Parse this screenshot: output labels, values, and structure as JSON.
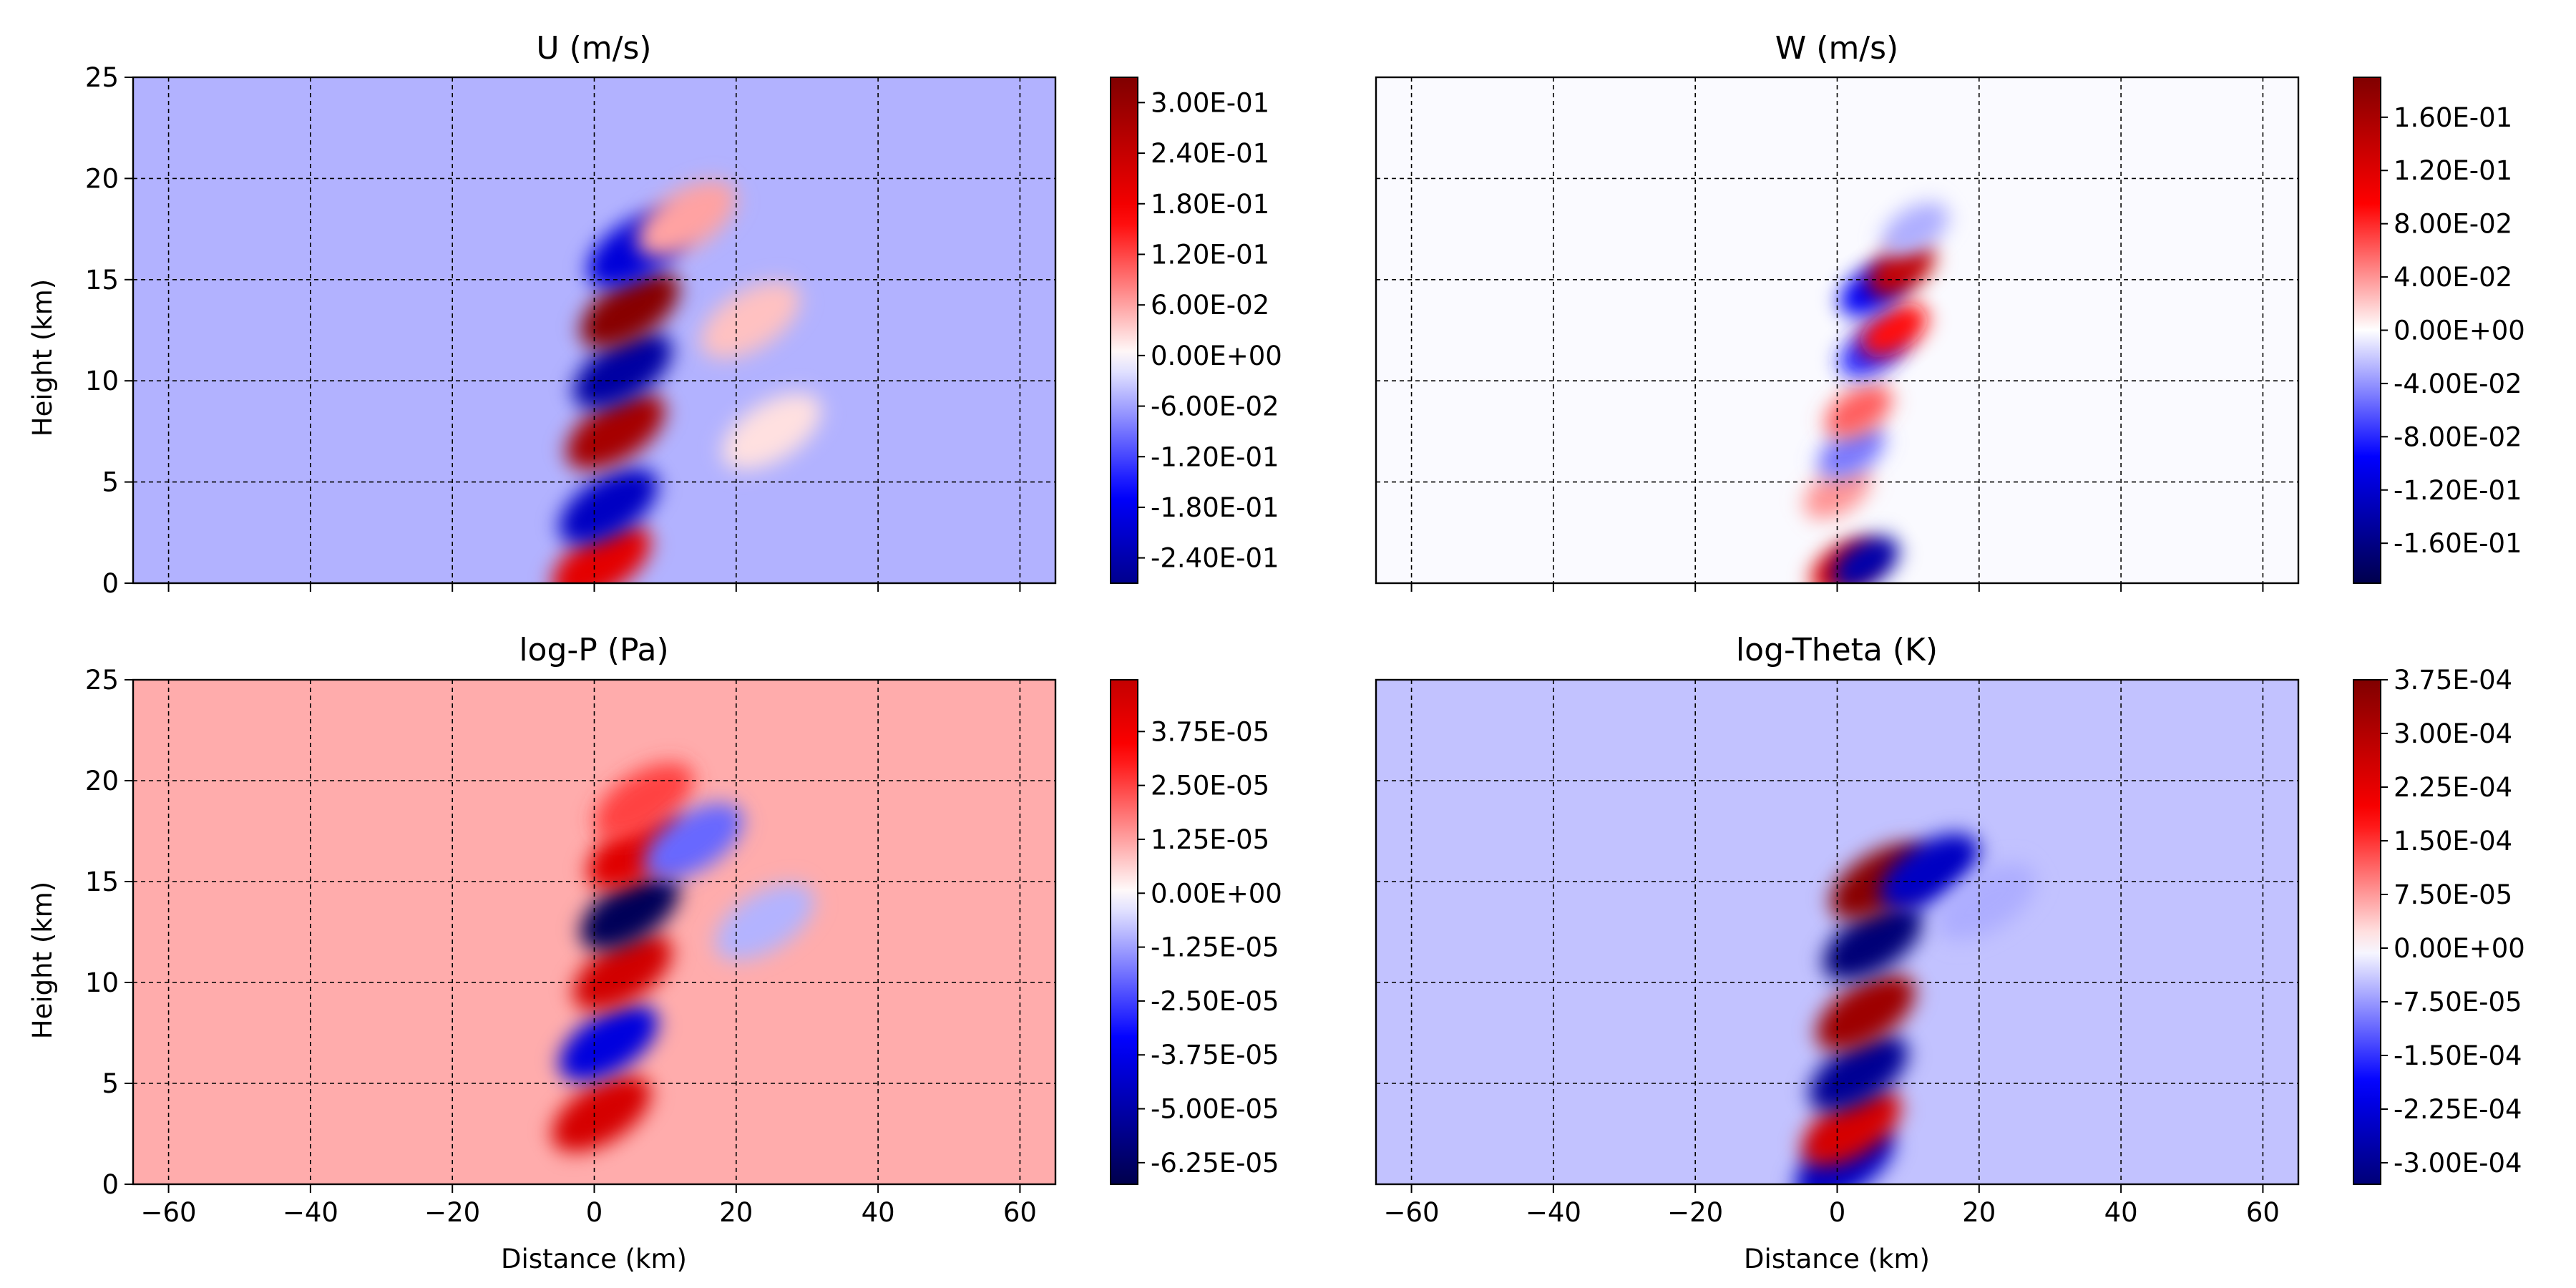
{
  "chart_data": [
    {
      "type": "heatmap",
      "title": "U (m/s)",
      "xlabel": "",
      "ylabel": "Height (km)",
      "xlim": [
        -65,
        65
      ],
      "ylim": [
        0,
        25
      ],
      "x_ticks": [
        -60,
        -40,
        -20,
        0,
        20,
        40,
        60
      ],
      "y_ticks": [
        0,
        5,
        10,
        15,
        20,
        25
      ],
      "x_tick_labels_shown": false,
      "y_tick_labels_shown": true,
      "grid": true,
      "colormap": "seismic",
      "colorbar": {
        "range": [
          -0.27,
          0.33
        ],
        "ticks": [
          -0.24,
          -0.18,
          -0.12,
          -0.06,
          0.0,
          0.06,
          0.12,
          0.18,
          0.24,
          0.3
        ],
        "tick_labels": [
          "-2.40E-01",
          "-1.80E-01",
          "-1.20E-01",
          "-6.00E-02",
          "0.00E+00",
          "6.00E-02",
          "1.20E-01",
          "1.80E-01",
          "2.40E-01",
          "3.00E-01"
        ]
      },
      "background_value": -0.05,
      "features": [
        {
          "x": 1,
          "y": 1.0,
          "value": 0.2
        },
        {
          "x": 2,
          "y": 3.8,
          "value": -0.22
        },
        {
          "x": 3,
          "y": 7.5,
          "value": 0.28
        },
        {
          "x": 4,
          "y": 10.5,
          "value": -0.25
        },
        {
          "x": 5,
          "y": 13.5,
          "value": 0.32
        },
        {
          "x": 6,
          "y": 16.5,
          "value": -0.2
        },
        {
          "x": 13,
          "y": 18.0,
          "value": 0.06
        },
        {
          "x": 22,
          "y": 13.0,
          "value": 0.04
        },
        {
          "x": 25,
          "y": 7.5,
          "value": 0.02
        }
      ]
    },
    {
      "type": "heatmap",
      "title": "W (m/s)",
      "xlabel": "",
      "ylabel": "",
      "xlim": [
        -65,
        65
      ],
      "ylim": [
        0,
        25
      ],
      "x_ticks": [
        -60,
        -40,
        -20,
        0,
        20,
        40,
        60
      ],
      "y_ticks": [
        0,
        5,
        10,
        15,
        20,
        25
      ],
      "x_tick_labels_shown": false,
      "y_tick_labels_shown": false,
      "grid": true,
      "colormap": "seismic",
      "colorbar": {
        "range": [
          -0.19,
          0.19
        ],
        "ticks": [
          -0.16,
          -0.12,
          -0.08,
          -0.04,
          0.0,
          0.04,
          0.08,
          0.12,
          0.16
        ],
        "tick_labels": [
          "-1.60E-01",
          "-1.20E-01",
          "-8.00E-02",
          "-4.00E-02",
          "0.00E+00",
          "4.00E-02",
          "8.00E-02",
          "1.20E-01",
          "1.60E-01"
        ]
      },
      "background_value": -0.002,
      "features": [
        {
          "x": 1,
          "y": 0.8,
          "value": 0.12
        },
        {
          "x": 4,
          "y": 1.0,
          "value": -0.14
        },
        {
          "x": 0,
          "y": 4.5,
          "value": 0.04
        },
        {
          "x": 2,
          "y": 6.5,
          "value": -0.05
        },
        {
          "x": 3,
          "y": 8.5,
          "value": 0.06
        },
        {
          "x": 5,
          "y": 11.5,
          "value": -0.08
        },
        {
          "x": 8,
          "y": 12.5,
          "value": 0.09
        },
        {
          "x": 5,
          "y": 14.5,
          "value": -0.1
        },
        {
          "x": 9,
          "y": 15.5,
          "value": 0.14
        },
        {
          "x": 11,
          "y": 17.5,
          "value": -0.03
        }
      ]
    },
    {
      "type": "heatmap",
      "title": "log-P (Pa)",
      "xlabel": "Distance (km)",
      "ylabel": "Height (km)",
      "xlim": [
        -65,
        65
      ],
      "ylim": [
        0,
        25
      ],
      "x_ticks": [
        -60,
        -40,
        -20,
        0,
        20,
        40,
        60
      ],
      "y_ticks": [
        0,
        5,
        10,
        15,
        20,
        25
      ],
      "x_tick_labels_shown": true,
      "y_tick_labels_shown": true,
      "grid": true,
      "colormap": "seismic",
      "colorbar": {
        "range": [
          -6.75e-05,
          4.95e-05
        ],
        "ticks": [
          -6.25e-05,
          -5e-05,
          -3.75e-05,
          -2.5e-05,
          -1.25e-05,
          0.0,
          1.25e-05,
          2.5e-05,
          3.75e-05
        ],
        "tick_labels": [
          "-6.25E-05",
          "-5.00E-05",
          "-3.75E-05",
          "-2.50E-05",
          "-1.25E-05",
          "0.00E+00",
          "1.25E-05",
          "2.50E-05",
          "3.75E-05"
        ]
      },
      "background_value": 1.1e-05,
      "features": [
        {
          "x": 1,
          "y": 3.5,
          "value": 4.5e-05
        },
        {
          "x": 2,
          "y": 7.0,
          "value": -4e-05
        },
        {
          "x": 4,
          "y": 10.5,
          "value": 4.6e-05
        },
        {
          "x": 5,
          "y": 13.5,
          "value": -6.5e-05
        },
        {
          "x": 6,
          "y": 16.5,
          "value": 4.2e-05
        },
        {
          "x": 7,
          "y": 19.0,
          "value": 2.5e-05
        },
        {
          "x": 14,
          "y": 17.0,
          "value": -2e-05
        },
        {
          "x": 24,
          "y": 13.0,
          "value": -1e-05
        }
      ]
    },
    {
      "type": "heatmap",
      "title": "log-Theta (K)",
      "xlabel": "Distance (km)",
      "ylabel": "",
      "xlim": [
        -65,
        65
      ],
      "ylim": [
        0,
        25
      ],
      "x_ticks": [
        -60,
        -40,
        -20,
        0,
        20,
        40,
        60
      ],
      "y_ticks": [
        0,
        5,
        10,
        15,
        20,
        25
      ],
      "x_tick_labels_shown": true,
      "y_tick_labels_shown": false,
      "grid": true,
      "colormap": "seismic",
      "colorbar": {
        "range": [
          -0.00033,
          0.000375
        ],
        "ticks": [
          -0.0003,
          -0.000225,
          -0.00015,
          -7.5e-05,
          0.0,
          7.5e-05,
          0.00015,
          0.000225,
          0.0003,
          0.000375
        ],
        "tick_labels": [
          "-3.00E-04",
          "-2.25E-04",
          "-1.50E-04",
          "-7.50E-05",
          "0.00E+00",
          "7.50E-05",
          "1.50E-04",
          "2.25E-04",
          "3.00E-04",
          "3.75E-04"
        ]
      },
      "background_value": -4.5e-05,
      "features": [
        {
          "x": 1,
          "y": 1.0,
          "value": -0.00025
        },
        {
          "x": 2,
          "y": 2.8,
          "value": 0.00025
        },
        {
          "x": 3,
          "y": 5.5,
          "value": -0.0003
        },
        {
          "x": 4,
          "y": 8.5,
          "value": 0.00033
        },
        {
          "x": 5,
          "y": 12.0,
          "value": -0.00033
        },
        {
          "x": 6,
          "y": 15.0,
          "value": 0.00036
        },
        {
          "x": 13,
          "y": 15.5,
          "value": -0.00025
        },
        {
          "x": 21,
          "y": 14.0,
          "value": -6e-05
        }
      ]
    }
  ]
}
